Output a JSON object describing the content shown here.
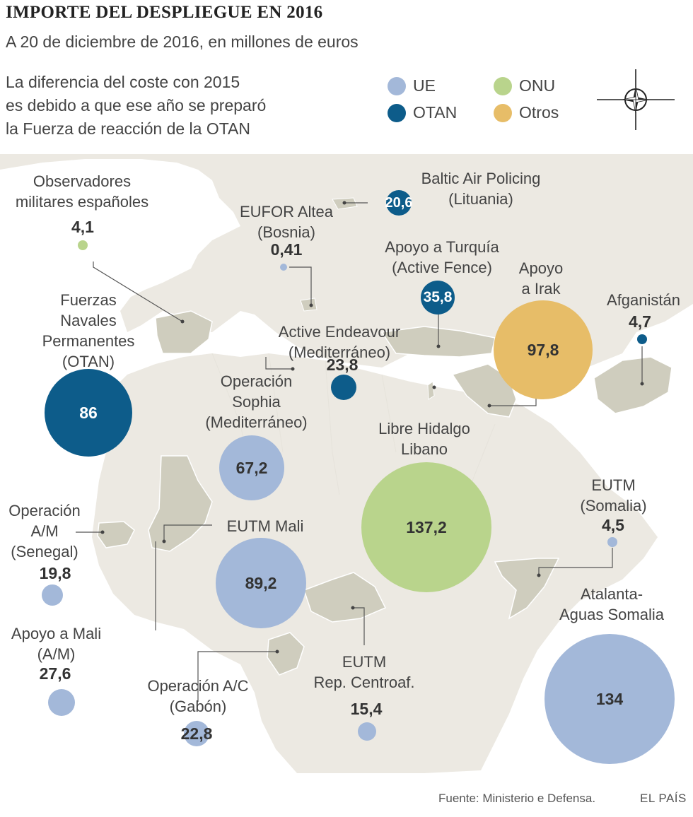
{
  "header": {
    "title": "IMPORTE DEL DESPLIEGUE EN 2016",
    "subtitle": "A 20 de diciembre de 2016, en millones de euros",
    "intro": [
      "La diferencia del coste con 2015",
      "es debido a que ese año se preparó",
      "la Fuerza de reacción de la OTAN"
    ]
  },
  "legend": [
    {
      "label": "UE",
      "color": "#a3b8d9"
    },
    {
      "label": "ONU",
      "color": "#b9d48c"
    },
    {
      "label": "OTAN",
      "color": "#0d5c8a"
    },
    {
      "label": "Otros",
      "color": "#e7bd68"
    }
  ],
  "compass_icon": "nato-compass-rose-icon",
  "missions": [
    {
      "id": "observadores",
      "label": [
        "Observadores",
        "militares españoles"
      ],
      "value": "4,1",
      "org": "ONU"
    },
    {
      "id": "baltic",
      "label": [
        "Baltic Air Policing",
        "(Lituania)"
      ],
      "value": "20,6",
      "org": "OTAN"
    },
    {
      "id": "eufor",
      "label": [
        "EUFOR Altea",
        "(Bosnia)"
      ],
      "value": "0,41",
      "org": "UE"
    },
    {
      "id": "turquia",
      "label": [
        "Apoyo a Turquía",
        "(Active Fence)"
      ],
      "value": "35,8",
      "org": "OTAN"
    },
    {
      "id": "irak",
      "label": [
        "Apoyo",
        "a Irak"
      ],
      "value": "97,8",
      "org": "Otros"
    },
    {
      "id": "afganistan",
      "label": [
        "Afganistán"
      ],
      "value": "4,7",
      "org": "OTAN"
    },
    {
      "id": "fuerzas",
      "label": [
        "Fuerzas",
        "Navales",
        "Permanentes",
        "(OTAN)"
      ],
      "value": "86",
      "org": "OTAN"
    },
    {
      "id": "endeavour",
      "label": [
        "Active Endeavour",
        "(Mediterráneo)"
      ],
      "value": "23,8",
      "org": "OTAN"
    },
    {
      "id": "sophia",
      "label": [
        "Operación",
        "Sophia",
        "(Mediterráneo)"
      ],
      "value": "67,2",
      "org": "UE"
    },
    {
      "id": "libano",
      "label": [
        "Libre Hidalgo",
        "Libano"
      ],
      "value": "137,2",
      "org": "ONU"
    },
    {
      "id": "eutm_somalia",
      "label": [
        "EUTM",
        "(Somalia)"
      ],
      "value": "4,5",
      "org": "UE"
    },
    {
      "id": "senegal",
      "label": [
        "Operación",
        "A/M",
        "(Senegal)"
      ],
      "value": "19,8",
      "org": "UE"
    },
    {
      "id": "eutm_mali",
      "label": [
        "EUTM Mali"
      ],
      "value": "89,2",
      "org": "UE"
    },
    {
      "id": "atalanta",
      "label": [
        "Atalanta-",
        "Aguas Somalia"
      ],
      "value": "134",
      "org": "UE"
    },
    {
      "id": "apoyo_mali",
      "label": [
        "Apoyo a Mali",
        "(A/M)"
      ],
      "value": "27,6",
      "org": "UE"
    },
    {
      "id": "eutm_rca",
      "label": [
        "EUTM",
        "Rep. Centroaf."
      ],
      "value": "15,4",
      "org": "UE"
    },
    {
      "id": "gabon",
      "label": [
        "Operación A/C",
        "(Gabón)"
      ],
      "value": "22,8",
      "org": "UE"
    }
  ],
  "footer": {
    "source": "Fuente: Ministerio e Defensa.",
    "brand": "EL PAÍS"
  }
}
